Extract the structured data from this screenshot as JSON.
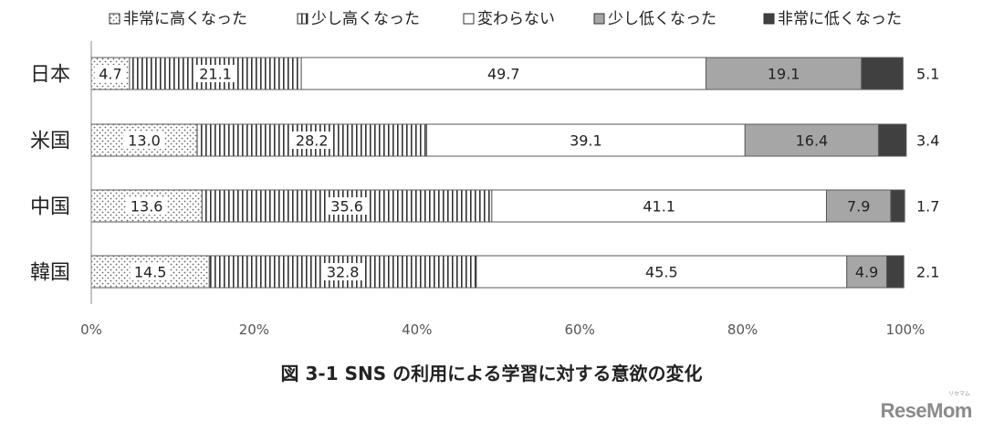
{
  "chart_data": {
    "type": "bar",
    "orientation": "horizontal",
    "stacked": true,
    "percent": true,
    "categories": [
      "日本",
      "米国",
      "中国",
      "韓国"
    ],
    "series": [
      {
        "name": "非常に高くなった",
        "pattern": "dots",
        "values": [
          4.7,
          13.0,
          13.6,
          14.5
        ]
      },
      {
        "name": "少し高くなった",
        "pattern": "vertical-lines",
        "values": [
          21.1,
          28.2,
          35.6,
          32.8
        ]
      },
      {
        "name": "変わらない",
        "pattern": "none",
        "values": [
          49.7,
          39.1,
          41.1,
          45.5
        ]
      },
      {
        "name": "少し低くなった",
        "pattern": "gray",
        "values": [
          19.1,
          16.4,
          7.9,
          4.9
        ]
      },
      {
        "name": "非常に低くなった",
        "pattern": "dark",
        "values": [
          5.1,
          3.4,
          1.7,
          2.1
        ]
      }
    ],
    "xticks": [
      "0%",
      "20%",
      "40%",
      "60%",
      "80%",
      "100%"
    ],
    "xlim": [
      0,
      100
    ],
    "legend_position": "top",
    "grid": false,
    "colors": {
      "gray": "#a6a6a6",
      "dark": "#404040",
      "outline": "#595959"
    }
  },
  "caption": "図 3-1 SNS の利用による学習に対する意欲の変化",
  "brand": "ReseMom",
  "brand_small": "リセマム"
}
